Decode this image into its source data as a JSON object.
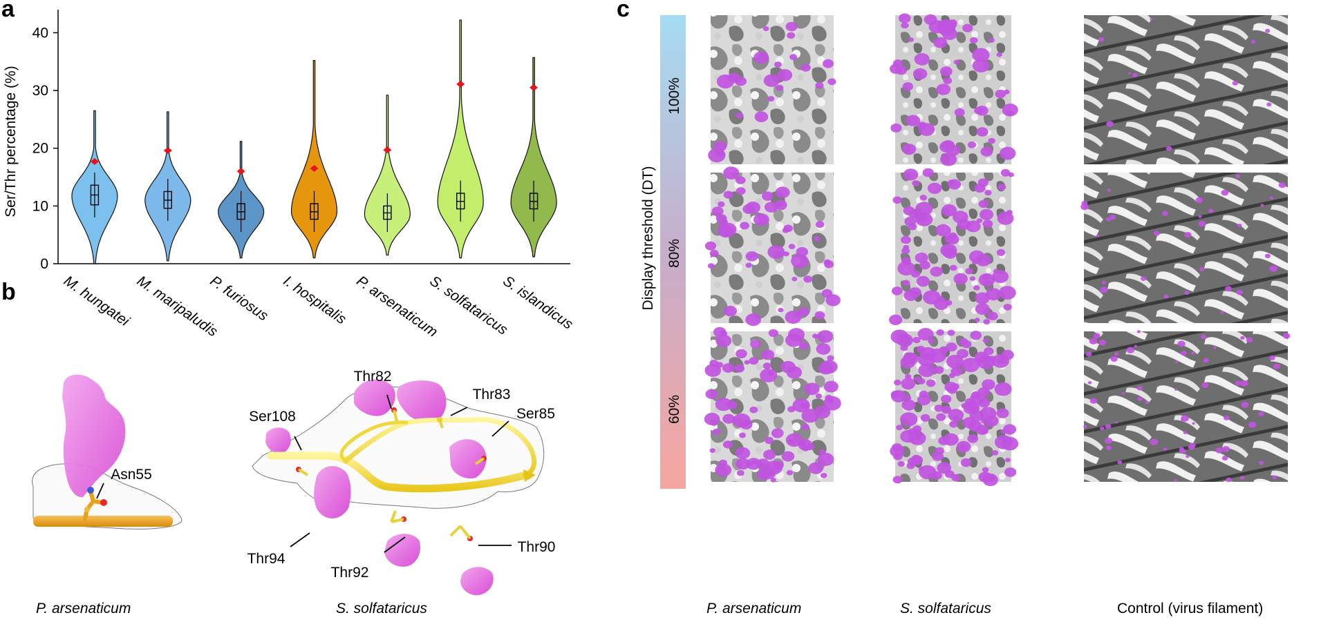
{
  "panels": {
    "a": "a",
    "b": "b",
    "c": "c"
  },
  "chart_data": {
    "type": "violin",
    "ylabel": "Ser/Thr percentage (%)",
    "ylim": [
      0,
      44
    ],
    "yticks": [
      0,
      10,
      20,
      30,
      40
    ],
    "grid": false,
    "categories": [
      "M. hungatei",
      "M. maripaludis",
      "P. furiosus",
      "I. hospitalis",
      "P. arsenaticum",
      "S. solfataricus",
      "S. islandicus"
    ],
    "colors": [
      "#7cc0ee",
      "#7cb9ea",
      "#5c95c8",
      "#e5960c",
      "#c6f07a",
      "#c2ee6b",
      "#92b94c"
    ],
    "min": [
      0,
      0.5,
      1,
      1,
      1.5,
      1,
      1.2
    ],
    "max": [
      26.5,
      26.3,
      21.2,
      35.2,
      29.2,
      42.2,
      35.7
    ],
    "q1": [
      10.2,
      9.6,
      7.7,
      7.7,
      7.7,
      9.5,
      9.5
    ],
    "median": [
      11.9,
      11,
      9,
      9,
      8.8,
      10.8,
      10.8
    ],
    "q3": [
      13.6,
      12.5,
      10.4,
      10.4,
      10,
      12.2,
      12.2
    ],
    "mode": [
      11.8,
      11,
      9,
      9,
      8.5,
      10.5,
      10.5
    ],
    "highlight": [
      17.7,
      19.6,
      16,
      16.5,
      19.7,
      31.1,
      30.5
    ],
    "highlight_color": "#e8141c"
  },
  "panel_b": {
    "left_caption": "P. arsenaticum",
    "right_caption": "S. solfataricus",
    "labels": {
      "asn55": "Asn55",
      "ser108": "Ser108",
      "thr82": "Thr82",
      "thr83": "Thr83",
      "ser85": "Ser85",
      "thr94": "Thr94",
      "thr92": "Thr92",
      "thr90": "Thr90"
    }
  },
  "panel_c": {
    "gradient_label": "Display threshold (DT)",
    "rows": [
      "100%",
      "80%",
      "60%"
    ],
    "columns": [
      "P. arsenaticum",
      "S. solfataricus",
      "Control (virus filament)"
    ]
  }
}
